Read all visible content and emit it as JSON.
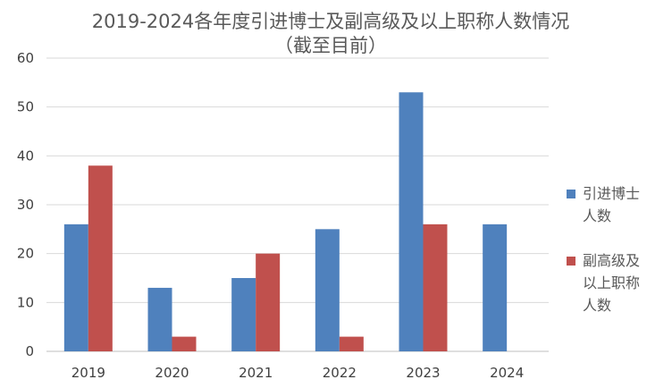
{
  "chart_data": {
    "type": "bar",
    "title": "2019-2024各年度引进博士及副高级及以上职称人数情况",
    "subtitle": "（截至目前）",
    "xlabel": "",
    "ylabel": "",
    "categories": [
      "2019",
      "2020",
      "2021",
      "2022",
      "2023",
      "2024"
    ],
    "series": [
      {
        "name": "引进博士人数",
        "name_lines": [
          "引进博士",
          "人数"
        ],
        "color": "#4f81bd",
        "values": [
          26,
          13,
          15,
          25,
          53,
          26
        ]
      },
      {
        "name": "副高级及以上职称人数",
        "name_lines": [
          "副高级及",
          "以上职称",
          "人数"
        ],
        "color": "#c0504d",
        "values": [
          38,
          3,
          20,
          3,
          26,
          0
        ]
      }
    ],
    "ylim": [
      0,
      60
    ],
    "yticks": [
      0,
      10,
      20,
      30,
      40,
      50,
      60
    ],
    "grid": true,
    "legend": "right"
  }
}
